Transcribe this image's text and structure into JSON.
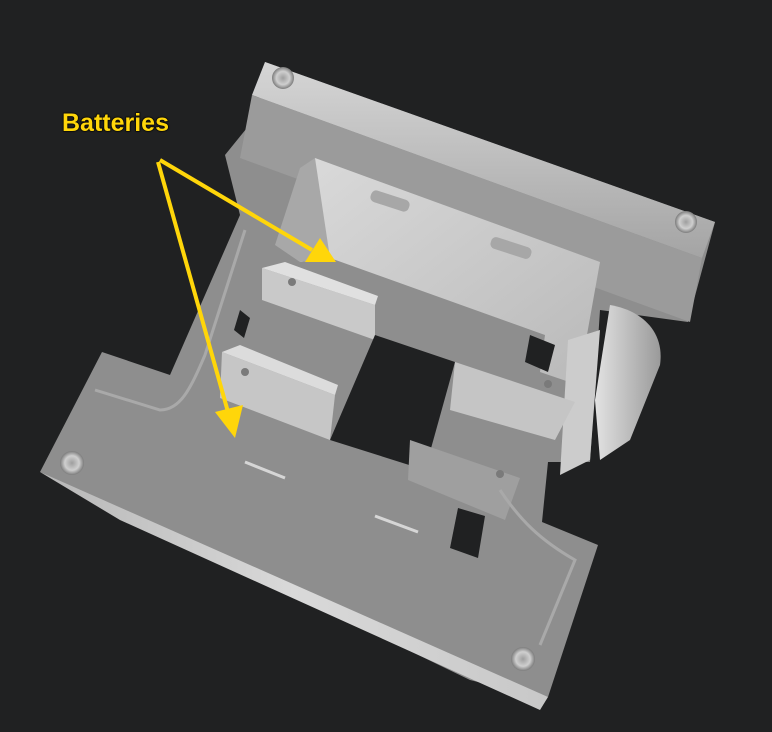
{
  "annotation": {
    "label": "Batteries",
    "color": "#ffd60a"
  },
  "colors": {
    "background": "#202122",
    "model_base": "#8e8e8e",
    "model_light": "#cfcfcf",
    "model_dark": "#6e6e6e"
  }
}
